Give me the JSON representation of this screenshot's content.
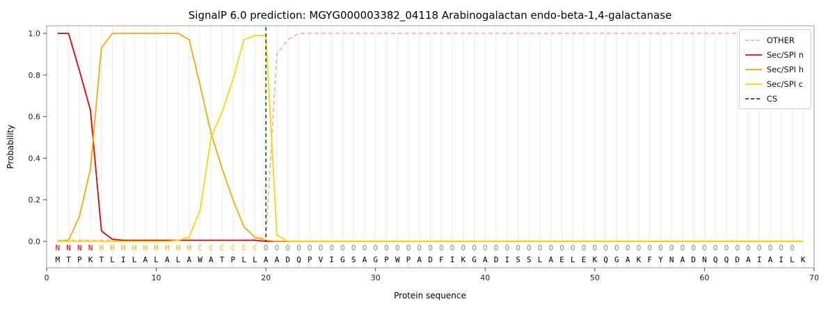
{
  "figure": {
    "title": "SignalP 6.0 prediction: MGYG000003382_04118 Arabinogalactan endo-beta-1,4-galactanase",
    "xlabel": "Protein sequence",
    "ylabel": "Probability"
  },
  "chart_data": {
    "type": "line",
    "title": "SignalP 6.0 prediction: MGYG000003382_04118 Arabinogalactan endo-beta-1,4-galactanase",
    "xlabel": "Protein sequence",
    "ylabel": "Probability",
    "xlim": [
      0,
      70
    ],
    "ylim": [
      0.0,
      1.0
    ],
    "xticks": [
      0,
      10,
      20,
      30,
      40,
      50,
      60,
      70
    ],
    "yticks": [
      0.0,
      0.2,
      0.4,
      0.6,
      0.8,
      1.0
    ],
    "grid": "vertical-line-per-residue",
    "legend_position": "upper-right",
    "x_start": 1,
    "x_step": 1,
    "series": [
      {
        "name": "OTHER",
        "color": "#ffadad",
        "style": "dashed",
        "values": [
          0.005,
          0.005,
          0.005,
          0.005,
          0.005,
          0.005,
          0.005,
          0.005,
          0.005,
          0.005,
          0.005,
          0.005,
          0.005,
          0.005,
          0.005,
          0.005,
          0.005,
          0.005,
          0.01,
          0.02,
          0.9,
          0.97,
          1,
          1,
          1,
          1,
          1,
          1,
          1,
          1,
          1,
          1,
          1,
          1,
          1,
          1,
          1,
          1,
          1,
          1,
          1,
          1,
          1,
          1,
          1,
          1,
          1,
          1,
          1,
          1,
          1,
          1,
          1,
          1,
          1,
          1,
          1,
          1,
          1,
          1,
          1,
          1,
          1,
          1,
          1,
          1,
          1,
          1,
          1
        ]
      },
      {
        "name": "Sec/SPI n",
        "color": "#e50000",
        "style": "solid",
        "values": [
          1,
          1,
          0.82,
          0.63,
          0.05,
          0.01,
          0.005,
          0.005,
          0.005,
          0.005,
          0.005,
          0.005,
          0.005,
          0.005,
          0.005,
          0.005,
          0.005,
          0.005,
          0.005,
          0,
          0,
          0,
          0,
          0,
          0,
          0,
          0,
          0,
          0,
          0,
          0,
          0,
          0,
          0,
          0,
          0,
          0,
          0,
          0,
          0,
          0,
          0,
          0,
          0,
          0,
          0,
          0,
          0,
          0,
          0,
          0,
          0,
          0,
          0,
          0,
          0,
          0,
          0,
          0,
          0,
          0,
          0,
          0,
          0,
          0,
          0,
          0,
          0,
          0
        ]
      },
      {
        "name": "Sec/SPI h",
        "color": "#ffa500",
        "style": "solid",
        "values": [
          0,
          0.005,
          0.12,
          0.35,
          0.93,
          1,
          1,
          1,
          1,
          1,
          1,
          1,
          0.97,
          0.75,
          0.52,
          0.35,
          0.2,
          0.07,
          0.02,
          0.005,
          0,
          0,
          0,
          0,
          0,
          0,
          0,
          0,
          0,
          0,
          0,
          0,
          0,
          0,
          0,
          0,
          0,
          0,
          0,
          0,
          0,
          0,
          0,
          0,
          0,
          0,
          0,
          0,
          0,
          0,
          0,
          0,
          0,
          0,
          0,
          0,
          0,
          0,
          0,
          0,
          0,
          0,
          0,
          0,
          0,
          0,
          0,
          0,
          0
        ]
      },
      {
        "name": "Sec/SPI c",
        "color": "#ffd500",
        "style": "solid",
        "values": [
          0,
          0,
          0,
          0,
          0,
          0,
          0,
          0,
          0,
          0,
          0,
          0.005,
          0.02,
          0.15,
          0.5,
          0.62,
          0.78,
          0.97,
          0.99,
          0.99,
          0.03,
          0,
          0,
          0,
          0,
          0,
          0,
          0,
          0,
          0,
          0,
          0,
          0,
          0,
          0,
          0,
          0,
          0,
          0,
          0,
          0,
          0,
          0,
          0,
          0,
          0,
          0,
          0,
          0,
          0,
          0,
          0,
          0,
          0,
          0,
          0,
          0,
          0,
          0,
          0,
          0,
          0,
          0,
          0,
          0,
          0,
          0,
          0,
          0
        ]
      }
    ],
    "cs_line": {
      "name": "CS",
      "position": 20,
      "color": "#006400",
      "style": "dashed"
    },
    "region_labels": "NNNNHHHHHHHHHCCCCCCOOOOOOOOOOOOOOOOOOOOOOOOOOOOOOOOOOOOOOOOOOOOOOOOO",
    "sequence": "MTPKTLILALALAWATPLLAADQPVIGSAGPWPADFIKGADISSLAELEKQGAKFYNADNQQDAIAILK",
    "label_colors": {
      "N": "#e50000",
      "H": "#ffa500",
      "C": "#ffc800",
      "O": "#8c8c8c"
    },
    "sequence_color": "#000000",
    "legend": [
      {
        "label": "OTHER",
        "color": "#ffadad",
        "dashed": true
      },
      {
        "label": "Sec/SPI n",
        "color": "#e50000",
        "dashed": false
      },
      {
        "label": "Sec/SPI h",
        "color": "#ffa500",
        "dashed": false
      },
      {
        "label": "Sec/SPI c",
        "color": "#ffd500",
        "dashed": false
      },
      {
        "label": "CS",
        "color": "#006400",
        "dashed": true
      }
    ]
  }
}
